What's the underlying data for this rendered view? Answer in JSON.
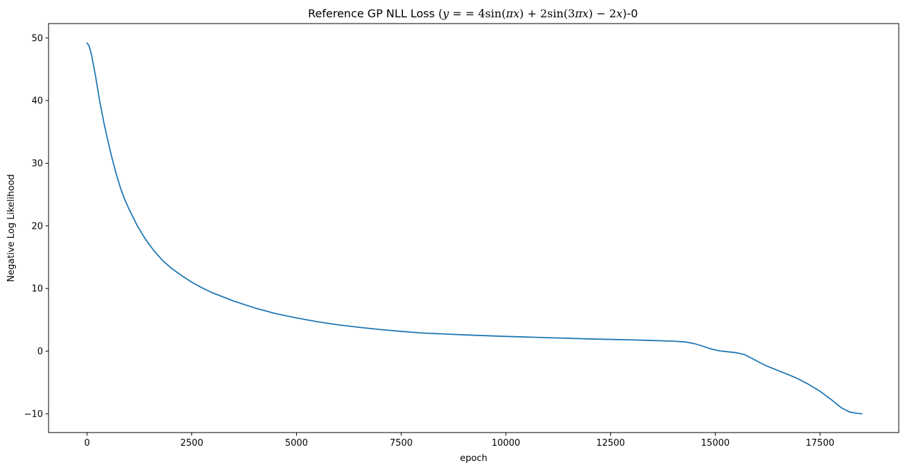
{
  "chart_data": {
    "type": "line",
    "title": {
      "prefix": "Reference GP NLL Loss (",
      "y": "y",
      "eqeq": " = = ",
      "four": "4",
      "sin1": "sin",
      "arg1_open": "(",
      "arg1_pi": "π",
      "arg1_x": "x",
      "arg1_close": ")",
      "plus": " + 2",
      "sin2": "sin",
      "arg2_open": "(3",
      "arg2_pi": "π",
      "arg2_x": "x",
      "arg2_close": ")",
      "minus": " − 2",
      "x": "x",
      "suffix": ")-0"
    },
    "xlabel": "epoch",
    "ylabel": "Negative Log Likelihood",
    "xlim": [
      -920,
      19380
    ],
    "ylim": [
      -13.0,
      52.3
    ],
    "xticks": [
      0,
      2500,
      5000,
      7500,
      10000,
      12500,
      15000,
      17500
    ],
    "yticks": [
      -10,
      0,
      10,
      20,
      30,
      40,
      50
    ],
    "grid": false,
    "series": [
      {
        "color": "#1f77b4",
        "x": [
          0,
          50,
          100,
          200,
          300,
          400,
          500,
          600,
          700,
          800,
          900,
          1000,
          1200,
          1400,
          1600,
          1800,
          2000,
          2250,
          2500,
          2750,
          3000,
          3500,
          4000,
          4500,
          5000,
          5500,
          6000,
          6500,
          7000,
          7500,
          8000,
          9000,
          10000,
          11000,
          12000,
          13000,
          13500,
          14000,
          14300,
          14500,
          14700,
          14900,
          15100,
          15300,
          15500,
          15700,
          15800,
          16000,
          16200,
          16500,
          16800,
          17000,
          17200,
          17500,
          17800,
          18000,
          18200,
          18350,
          18500
        ],
        "y": [
          49.2,
          48.7,
          47.5,
          44.0,
          40.0,
          36.5,
          33.5,
          30.7,
          28.2,
          26.0,
          24.2,
          22.7,
          20.0,
          17.8,
          16.0,
          14.5,
          13.3,
          12.1,
          11.0,
          10.1,
          9.3,
          8.0,
          6.9,
          6.0,
          5.3,
          4.7,
          4.2,
          3.8,
          3.45,
          3.15,
          2.9,
          2.6,
          2.35,
          2.15,
          1.95,
          1.8,
          1.7,
          1.6,
          1.45,
          1.2,
          0.8,
          0.35,
          0.05,
          -0.1,
          -0.25,
          -0.55,
          -0.9,
          -1.6,
          -2.3,
          -3.1,
          -3.9,
          -4.5,
          -5.2,
          -6.4,
          -7.9,
          -9.0,
          -9.7,
          -9.9,
          -10.0
        ]
      }
    ]
  }
}
